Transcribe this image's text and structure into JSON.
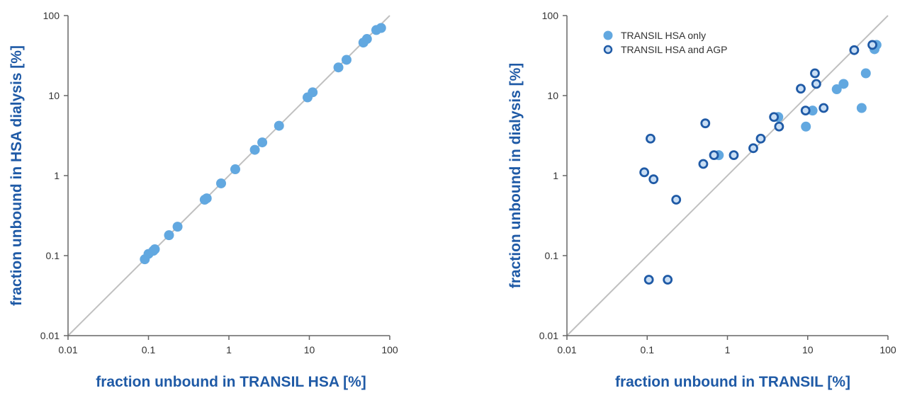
{
  "colors": {
    "filled_point": "#62a8e0",
    "open_point_stroke": "#1f5aa6",
    "open_point_fill": "#c9def4",
    "identity_line": "#c0c0c0",
    "axis": "#666666",
    "axis_title": "#1f5aa6"
  },
  "chart_data": [
    {
      "type": "scatter",
      "xscale": "log",
      "yscale": "log",
      "xlim": [
        0.01,
        100
      ],
      "ylim": [
        0.01,
        100
      ],
      "identity_line": true,
      "grid": false,
      "xlabel": "fraction unbound in TRANSIL HSA [%]",
      "ylabel": "fraction unbound in HSA dialysis [%]",
      "xticks": [
        0.01,
        0.1,
        1,
        10,
        100
      ],
      "xtick_labels": [
        "0.01",
        "0.1",
        "1",
        "10",
        "100"
      ],
      "yticks": [
        0.01,
        0.1,
        1,
        10,
        100
      ],
      "ytick_labels": [
        "0.01",
        "0.1",
        "1",
        "10",
        "100"
      ],
      "series": [
        {
          "marker": "filled",
          "points": [
            [
              0.09,
              0.09
            ],
            [
              0.1,
              0.105
            ],
            [
              0.115,
              0.115
            ],
            [
              0.12,
              0.12
            ],
            [
              0.18,
              0.18
            ],
            [
              0.23,
              0.23
            ],
            [
              0.5,
              0.5
            ],
            [
              0.53,
              0.52
            ],
            [
              0.8,
              0.8
            ],
            [
              1.2,
              1.2
            ],
            [
              2.1,
              2.1
            ],
            [
              2.6,
              2.6
            ],
            [
              4.2,
              4.2
            ],
            [
              9.5,
              9.5
            ],
            [
              11,
              11
            ],
            [
              23,
              22.5
            ],
            [
              29,
              28
            ],
            [
              47,
              46
            ],
            [
              52,
              51
            ],
            [
              68,
              66
            ],
            [
              78,
              70
            ]
          ]
        }
      ]
    },
    {
      "type": "scatter",
      "xscale": "log",
      "yscale": "log",
      "xlim": [
        0.01,
        100
      ],
      "ylim": [
        0.01,
        100
      ],
      "identity_line": true,
      "grid": false,
      "legend_position": "top-left",
      "xlabel": "fraction unbound in TRANSIL [%]",
      "ylabel": "fraction unbound in dialysis [%]",
      "xticks": [
        0.01,
        0.1,
        1,
        10,
        100
      ],
      "xtick_labels": [
        "0.01",
        "0.1",
        "1",
        "10",
        "100"
      ],
      "yticks": [
        0.01,
        0.1,
        1,
        10,
        100
      ],
      "ytick_labels": [
        "0.01",
        "0.1",
        "1",
        "10",
        "100"
      ],
      "series": [
        {
          "name": "TRANSIL HSA only",
          "marker": "filled",
          "points": [
            [
              0.78,
              1.8
            ],
            [
              4.3,
              5.4
            ],
            [
              9.5,
              4.1
            ],
            [
              11.5,
              6.5
            ],
            [
              23,
              12
            ],
            [
              28,
              14
            ],
            [
              47,
              7
            ],
            [
              53,
              19
            ],
            [
              68,
              38
            ],
            [
              72,
              43
            ]
          ]
        },
        {
          "name": "TRANSIL HSA and AGP",
          "marker": "open",
          "points": [
            [
              0.092,
              1.1
            ],
            [
              0.105,
              0.05
            ],
            [
              0.11,
              2.9
            ],
            [
              0.12,
              0.9
            ],
            [
              0.18,
              0.05
            ],
            [
              0.23,
              0.5
            ],
            [
              0.5,
              1.4
            ],
            [
              0.53,
              4.5
            ],
            [
              0.68,
              1.8
            ],
            [
              1.2,
              1.8
            ],
            [
              2.1,
              2.2
            ],
            [
              2.6,
              2.9
            ],
            [
              3.8,
              5.4
            ],
            [
              4.4,
              4.1
            ],
            [
              8.2,
              12.2
            ],
            [
              9.4,
              6.5
            ],
            [
              12.3,
              19
            ],
            [
              12.8,
              14
            ],
            [
              15.8,
              7
            ],
            [
              38,
              37
            ],
            [
              64,
              43
            ]
          ]
        }
      ]
    }
  ]
}
